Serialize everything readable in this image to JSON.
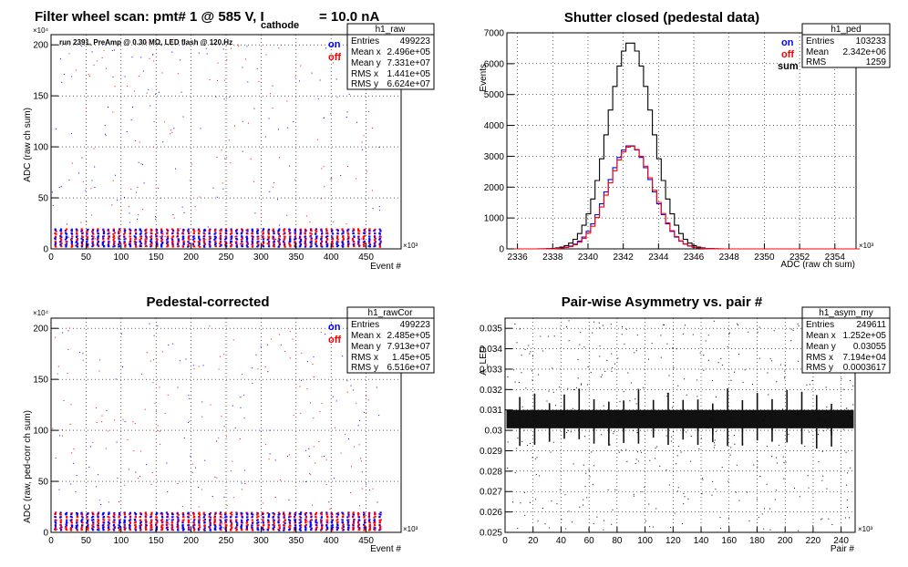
{
  "page_title": "Filter wheel scan: pmt#   1 @   585 V, I",
  "page_title_sub": "cathode",
  "page_title_tail": "= 10.0 nA",
  "chart_data": [
    {
      "type": "scatter",
      "title": "",
      "xlabel": "Event #",
      "ylabel": "ADC (raw ch sum)",
      "x_exponent": "×10³",
      "y_exponent": "×10⁴",
      "xlim": [
        0,
        500
      ],
      "ylim": [
        0,
        2100
      ],
      "xticks": [
        "0",
        "50",
        "100",
        "150",
        "200",
        "250",
        "300",
        "350",
        "400",
        "450"
      ],
      "yticks": [
        "0",
        "50",
        "100",
        "150",
        "200"
      ],
      "grid": true,
      "note": "run 2391, PreAmp @ 0.30 MΩ, LED flash @  120.Hz",
      "legend": {
        "position": "top-right",
        "entries": [
          {
            "name": "on",
            "color": "#0000ff"
          },
          {
            "name": "off",
            "color": "#ff0000"
          }
        ]
      },
      "stats": {
        "name": "h1_raw",
        "rows": [
          {
            "label": "Entries",
            "value": "499223"
          },
          {
            "label": "Mean x",
            "value": "2.496e+05"
          },
          {
            "label": "Mean y",
            "value": "7.331e+07"
          },
          {
            "label": "RMS x",
            "value": "1.441e+05"
          },
          {
            "label": "RMS y",
            "value": "6.624e+07"
          }
        ]
      },
      "levels": [
        200,
        190,
        182,
        162,
        155,
        131,
        125,
        109,
        100,
        81,
        75,
        60,
        50,
        37,
        30,
        5
      ],
      "event_range": [
        0,
        470
      ]
    },
    {
      "type": "line",
      "title": "Shutter closed (pedestal data)",
      "xlabel": "ADC (raw ch sum)",
      "ylabel": "Events",
      "x_exponent": "×10³",
      "xlim": [
        2335.4,
        2355.2
      ],
      "ylim": [
        0,
        7000
      ],
      "xticks": [
        "2336",
        "2338",
        "2340",
        "2342",
        "2344",
        "2346",
        "2348",
        "2350",
        "2352",
        "2354"
      ],
      "yticks": [
        "0",
        "1000",
        "2000",
        "3000",
        "4000",
        "5000",
        "6000",
        "7000"
      ],
      "grid": true,
      "legend": {
        "position": "top-right",
        "entries": [
          {
            "name": "on",
            "color": "#0000ff"
          },
          {
            "name": "off",
            "color": "#ff0000"
          },
          {
            "name": "sum",
            "color": "#000000"
          }
        ]
      },
      "stats": {
        "name": "h1_ped",
        "rows": [
          {
            "label": "Entries",
            "value": "103233"
          },
          {
            "label": "Mean",
            "value": "2.342e+06"
          },
          {
            "label": "RMS",
            "value": "1259"
          }
        ]
      },
      "series": [
        {
          "name": "sum",
          "color": "#000000",
          "peak": 6700,
          "mean": 2342.4,
          "sigma": 1.26
        },
        {
          "name": "on",
          "color": "#0000ff",
          "peak": 3350,
          "mean": 2342.4,
          "sigma": 1.26
        },
        {
          "name": "off",
          "color": "#ff0000",
          "peak": 3330,
          "mean": 2342.45,
          "sigma": 1.25
        }
      ]
    },
    {
      "type": "scatter",
      "title": "Pedestal-corrected",
      "xlabel": "Event #",
      "ylabel": "ADC (raw, ped-corr ch sum)",
      "x_exponent": "×10³",
      "y_exponent": "×10⁴",
      "xlim": [
        0,
        500
      ],
      "ylim": [
        0,
        2100
      ],
      "xticks": [
        "0",
        "50",
        "100",
        "150",
        "200",
        "250",
        "300",
        "350",
        "400",
        "450"
      ],
      "yticks": [
        "0",
        "50",
        "100",
        "150",
        "200"
      ],
      "grid": true,
      "legend": {
        "position": "top-right",
        "entries": [
          {
            "name": "on",
            "color": "#0000ff"
          },
          {
            "name": "off",
            "color": "#ff0000"
          }
        ]
      },
      "stats": {
        "name": "h1_rawCor",
        "rows": [
          {
            "label": "Entries",
            "value": "499223"
          },
          {
            "label": "Mean x",
            "value": "2.485e+05"
          },
          {
            "label": "Mean y",
            "value": "7.913e+07"
          },
          {
            "label": "RMS x",
            "value": "1.45e+05"
          },
          {
            "label": "RMS y",
            "value": "6.516e+07"
          }
        ]
      },
      "levels": [
        200,
        190,
        182,
        162,
        155,
        131,
        125,
        109,
        100,
        81,
        75,
        60,
        50,
        37,
        30,
        5
      ],
      "event_range": [
        0,
        470
      ]
    },
    {
      "type": "scatter",
      "title": "Pair-wise Asymmetry vs. pair #",
      "xlabel": "Pair #",
      "ylabel": "A_LED",
      "x_exponent": "×10³",
      "xlim": [
        0,
        250
      ],
      "ylim": [
        0.025,
        0.0355
      ],
      "xticks": [
        "0",
        "20",
        "40",
        "60",
        "80",
        "100",
        "120",
        "140",
        "160",
        "180",
        "200",
        "220",
        "240"
      ],
      "yticks": [
        "0.025",
        "0.026",
        "0.027",
        "0.028",
        "0.029",
        "0.03",
        "0.031",
        "0.032",
        "0.033",
        "0.034",
        "0.035"
      ],
      "grid": true,
      "stats": {
        "name": "h1_asym_my",
        "rows": [
          {
            "label": "Entries",
            "value": "249611"
          },
          {
            "label": "Mean x",
            "value": "1.252e+05"
          },
          {
            "label": "Mean y",
            "value": "0.03055"
          },
          {
            "label": "RMS x",
            "value": "7.194e+04"
          },
          {
            "label": "RMS y",
            "value": "0.0003617"
          }
        ]
      },
      "band": {
        "center": 0.03055,
        "halfwidth": 0.00045
      }
    }
  ]
}
